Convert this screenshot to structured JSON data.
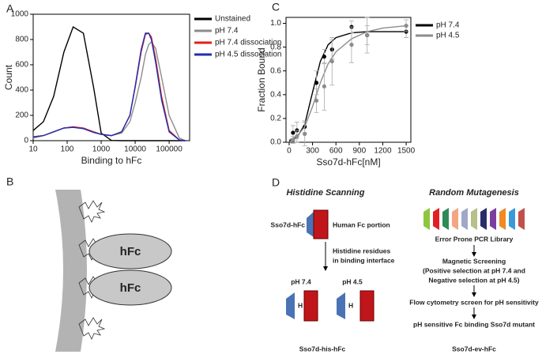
{
  "chart_data": [
    {
      "type": "line",
      "panel": "A",
      "xlabel": "Binding to hFc",
      "ylabel": "Count",
      "log_x": true,
      "x": [
        10,
        20,
        40,
        80,
        150,
        300,
        600,
        1000,
        2000,
        4000,
        7000,
        10000,
        15000,
        20000,
        25000,
        30000,
        40000,
        60000,
        100000,
        200000,
        300000
      ],
      "series": [
        {
          "name": "Unstained",
          "color": "#000000",
          "values": [
            80,
            150,
            350,
            700,
            900,
            850,
            420,
            60,
            2,
            0,
            0,
            0,
            0,
            0,
            0,
            0,
            0,
            0,
            0,
            0,
            0
          ]
        },
        {
          "name": "pH 7.4",
          "color": "#8c8c8c",
          "values": [
            20,
            40,
            70,
            100,
            110,
            100,
            70,
            50,
            40,
            60,
            150,
            300,
            500,
            680,
            760,
            780,
            730,
            500,
            200,
            20,
            0
          ]
        },
        {
          "name": "pH 7.4 dissociation",
          "color": "#e0201b",
          "values": [
            30,
            40,
            70,
            100,
            110,
            100,
            70,
            50,
            40,
            70,
            200,
            420,
            700,
            840,
            850,
            820,
            650,
            350,
            80,
            5,
            0
          ]
        },
        {
          "name": "pH 4.5 dissociation",
          "color": "#1f2fb0",
          "values": [
            30,
            40,
            70,
            100,
            105,
            95,
            65,
            50,
            40,
            70,
            200,
            430,
            720,
            850,
            850,
            800,
            620,
            320,
            70,
            5,
            0
          ]
        }
      ],
      "xlim": [
        10,
        400000
      ],
      "xticks": [
        10,
        100,
        1000,
        10000,
        100000
      ],
      "ylim": [
        0,
        1000
      ],
      "yticks": [
        0,
        200,
        400,
        600,
        800,
        1000
      ]
    },
    {
      "type": "scatter",
      "panel": "C",
      "xlabel": "Sso7d-hFc[nM]",
      "ylabel": "Fraction Bound",
      "fit_x": [
        0,
        100,
        200,
        300,
        400,
        500,
        600,
        800,
        1000,
        1200,
        1500
      ],
      "series": [
        {
          "name": "pH 7.4",
          "color": "#000000",
          "x": [
            50,
            100,
            200,
            350,
            450,
            550,
            800,
            1000,
            1500
          ],
          "values": [
            0.08,
            0.1,
            0.13,
            0.5,
            0.72,
            0.78,
            0.97,
            0.9,
            0.93
          ],
          "errors": [
            0.06,
            0.07,
            0.05,
            0.1,
            0.06,
            0.08,
            0.05,
            0.08,
            0.05
          ],
          "fit_values": [
            0.01,
            0.04,
            0.15,
            0.42,
            0.68,
            0.82,
            0.88,
            0.92,
            0.93,
            0.93,
            0.93
          ]
        },
        {
          "name": "pH 4.5",
          "color": "#8c8c8c",
          "x": [
            50,
            100,
            200,
            350,
            450,
            550,
            800,
            1000,
            1500
          ],
          "values": [
            0.02,
            0.05,
            0.07,
            0.35,
            0.47,
            0.68,
            0.82,
            0.9,
            0.98
          ],
          "errors": [
            0.03,
            0.05,
            0.1,
            0.1,
            0.2,
            0.2,
            0.15,
            0.15,
            0.05
          ],
          "fit_values": [
            0.02,
            0.05,
            0.13,
            0.3,
            0.5,
            0.66,
            0.76,
            0.87,
            0.93,
            0.96,
            0.98
          ]
        }
      ],
      "xlim": [
        -40,
        1560
      ],
      "xticks": [
        0,
        300,
        600,
        900,
        1200,
        1500
      ],
      "ylim": [
        0,
        1.05
      ],
      "yticks": [
        {
          "value": 0,
          "label": "0.0"
        },
        0.2,
        0.4,
        0.6,
        0.8,
        {
          "value": 1,
          "label": "1.0"
        }
      ]
    }
  ],
  "diagram_b": {
    "panel": "B",
    "labels": [
      "hFc",
      "hFc"
    ]
  },
  "diagram_d": {
    "panel": "D",
    "left": {
      "title": "Histidine Scanning",
      "construct": "Sso7d-hFc",
      "fc_label": "Human Fc portion",
      "step": [
        "Histidine residues",
        "in binding interface"
      ],
      "conditions": [
        "pH 7.4",
        "pH 4.5"
      ],
      "residue": [
        "H",
        "H"
      ],
      "result": "Sso7d-his-hFc"
    },
    "right": {
      "title": "Random Mutagenesis",
      "steps": [
        "Error Prone PCR Library",
        "Magnetic Screening",
        "(Positive selection at pH 7.4 and",
        "Negative selection at pH 4.5)",
        "Flow cytometry screen for pH sensitivity",
        "pH sensitive Fc binding Sso7d mutant"
      ],
      "result": "Sso7d-ev-hFc"
    }
  }
}
